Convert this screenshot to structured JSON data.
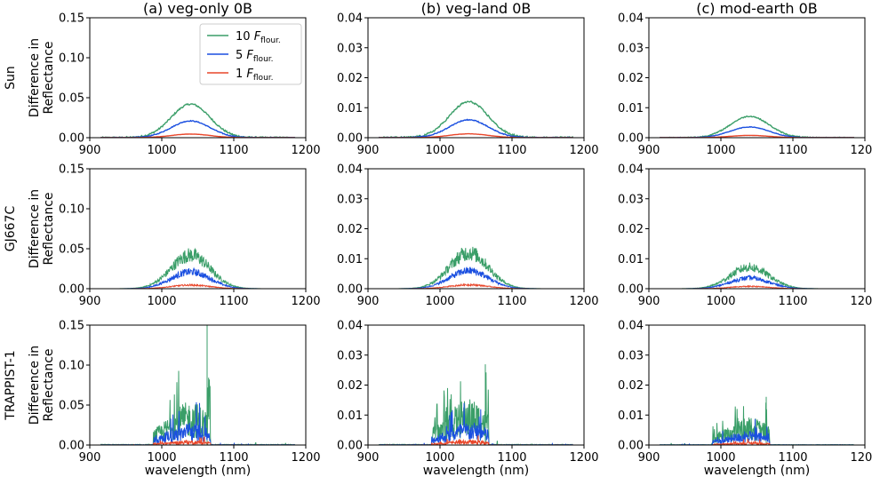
{
  "chart_data": {
    "type": "line",
    "x_range": [
      900,
      1200
    ],
    "x_ticks": [
      "900",
      "1000",
      "1100",
      "1200"
    ],
    "xlabel": "wavelength (nm)",
    "ylabel_line1": "Difference in",
    "ylabel_line2": "Reflectance",
    "columns": [
      {
        "title": "(a) veg-only 0B",
        "ylim": [
          0,
          0.15
        ],
        "y_ticks": [
          "0.00",
          "0.05",
          "0.10",
          "0.15"
        ],
        "scale": 1.0
      },
      {
        "title": "(b) veg-land 0B",
        "ylim": [
          0,
          0.04
        ],
        "y_ticks": [
          "0.00",
          "0.01",
          "0.02",
          "0.03",
          "0.04"
        ],
        "scale": 0.285
      },
      {
        "title": "(c) mod-earth 0B",
        "ylim": [
          0,
          0.04
        ],
        "y_ticks": [
          "0.00",
          "0.01",
          "0.02",
          "0.03",
          "0.04"
        ],
        "scale": 0.17
      }
    ],
    "rows": [
      {
        "label": "Sun",
        "noise": "smooth"
      },
      {
        "label": "GJ667C",
        "noise": "noisy"
      },
      {
        "label": "TRAPPIST-1",
        "noise": "spiky"
      }
    ],
    "peak_wavelength": 1040,
    "peak_width": 38,
    "series": [
      {
        "name": "10",
        "sub": "flour.",
        "color": "#3a9e68",
        "peak": 0.042
      },
      {
        "name": "5",
        "sub": "flour.",
        "color": "#1a4fe0",
        "peak": 0.021
      },
      {
        "name": "1",
        "sub": "flour.",
        "color": "#e8462a",
        "peak": 0.0045
      }
    ],
    "legend_symbol": "F",
    "legend_location": "top-right of panel (a) Sun",
    "trappist_spike": {
      "x": 1063,
      "peak": 0.15
    }
  }
}
